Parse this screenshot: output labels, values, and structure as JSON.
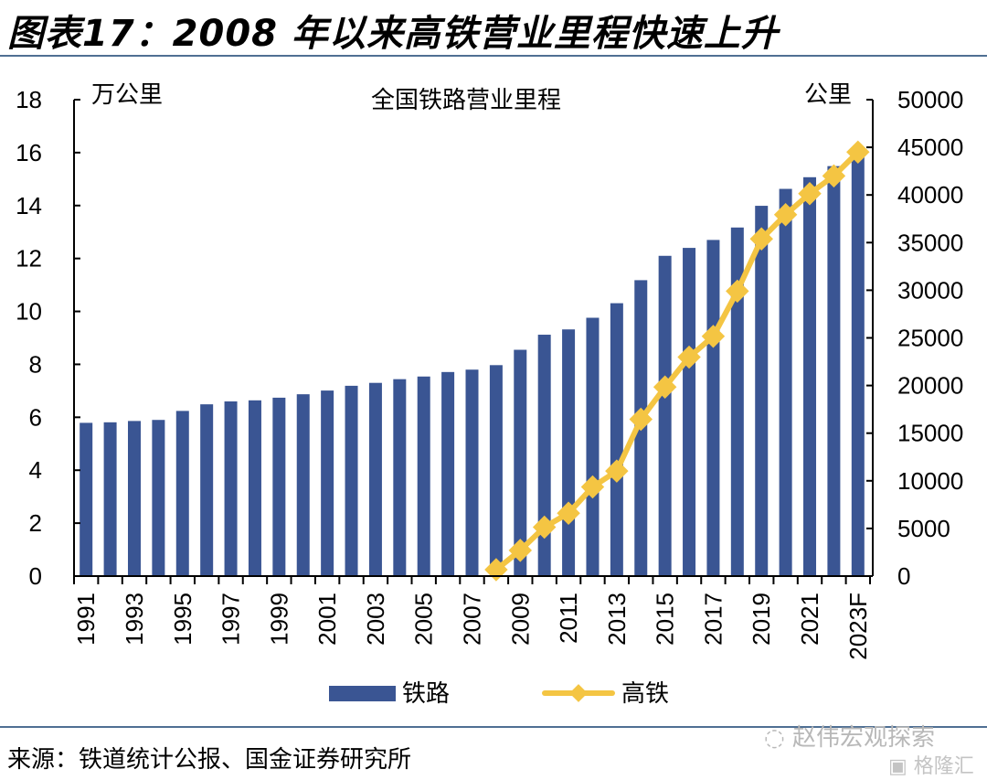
{
  "figure": {
    "title": "图表17：2008 年以来高铁营业里程快速上升",
    "source": "来源：铁道统计公报、国金证券研究所",
    "watermark": "赵伟宏观探索",
    "watermark2": "格隆汇"
  },
  "chart_data": {
    "type": "bar",
    "title": "全国铁路营业里程",
    "xlabel": "",
    "ylabel": "万公里",
    "y2label": "公里",
    "ylim": [
      0,
      18
    ],
    "y2lim": [
      0,
      50000
    ],
    "yticks": [
      "0",
      "2",
      "4",
      "6",
      "8",
      "10",
      "12",
      "14",
      "16",
      "18"
    ],
    "y2ticks": [
      "0",
      "5000",
      "10000",
      "15000",
      "20000",
      "25000",
      "30000",
      "35000",
      "40000",
      "45000",
      "50000"
    ],
    "grid": false,
    "legend_position": "bottom",
    "categories": [
      "1991",
      "1992",
      "1993",
      "1994",
      "1995",
      "1996",
      "1997",
      "1998",
      "1999",
      "2000",
      "2001",
      "2002",
      "2003",
      "2004",
      "2005",
      "2006",
      "2007",
      "2008",
      "2009",
      "2010",
      "2011",
      "2012",
      "2013",
      "2014",
      "2015",
      "2016",
      "2017",
      "2018",
      "2019",
      "2020",
      "2021",
      "2022",
      "2023F"
    ],
    "xtick_labels": [
      "1991",
      "1993",
      "1995",
      "1997",
      "1999",
      "2001",
      "2003",
      "2005",
      "2007",
      "2009",
      "2011",
      "2013",
      "2015",
      "2017",
      "2019",
      "2021",
      "2023F"
    ],
    "series": [
      {
        "name": "铁路",
        "type": "bar",
        "axis": "left",
        "color": "#3a5593",
        "values": [
          5.79,
          5.81,
          5.86,
          5.9,
          6.24,
          6.49,
          6.6,
          6.64,
          6.74,
          6.87,
          7.01,
          7.19,
          7.3,
          7.44,
          7.54,
          7.71,
          7.8,
          7.97,
          8.55,
          9.12,
          9.32,
          9.76,
          10.31,
          11.18,
          12.1,
          12.4,
          12.7,
          13.17,
          13.99,
          14.63,
          15.07,
          15.49,
          15.9
        ]
      },
      {
        "name": "高铁",
        "type": "line",
        "axis": "right",
        "color": "#f4c543",
        "start_index": 17,
        "values": [
          672,
          2699,
          5133,
          6601,
          9356,
          11028,
          16456,
          19838,
          22980,
          25164,
          29904,
          35388,
          37929,
          40139,
          42000,
          44500
        ]
      }
    ]
  }
}
